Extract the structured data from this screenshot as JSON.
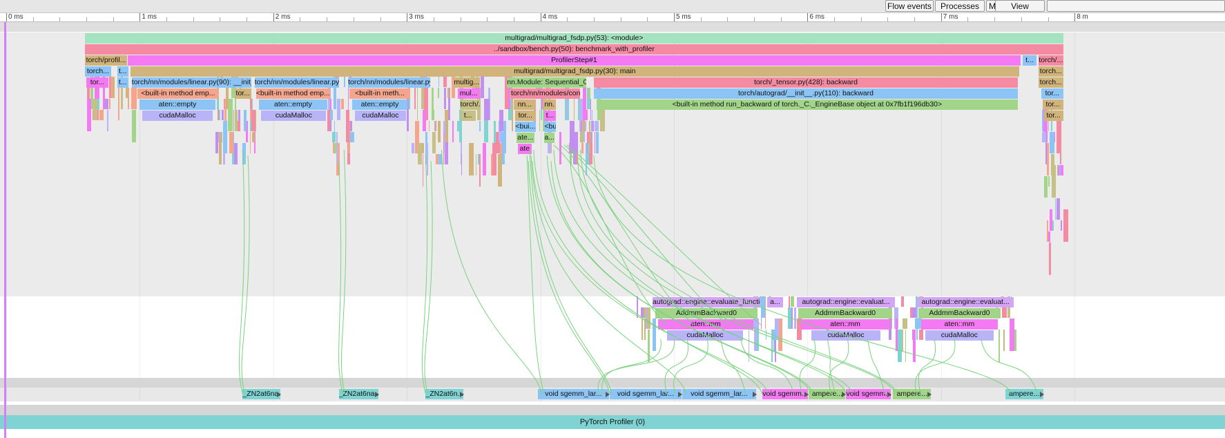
{
  "toolbar": {
    "buttons": [
      {
        "name": "flow-events-button",
        "label": "Flow events"
      },
      {
        "name": "processes-button",
        "label": "Processes"
      },
      {
        "name": "m-button",
        "label": "M"
      },
      {
        "name": "view-options-button",
        "label": "View Options"
      },
      {
        "name": "search-box",
        "label": ""
      }
    ]
  },
  "ruler": {
    "ticks": [
      "0 ms",
      "1 ms",
      "2 ms",
      "3 ms",
      "4 ms",
      "5 ms",
      "6 ms",
      "7 ms",
      "8 m"
    ]
  },
  "colors": {
    "teal": "#7fd3d3",
    "pink": "#f58ba3",
    "magenta": "#f37af3",
    "tan": "#d1b47c",
    "blue": "#8cc4f5",
    "salmon": "#f5a58c",
    "lavender": "#b9b3f7",
    "green": "#a2d58a",
    "mint": "#a3e3c0",
    "olive": "#c6bf86",
    "purple": "#c28ff0",
    "violet": "#d3a6f5",
    "cursor": "#d37ff5",
    "flow": "#78d37c"
  },
  "cpu_events": [
    {
      "label": "multigrad/multigrad_fsdp.py(53): <module>",
      "color": "mint",
      "t0": 0.59,
      "t1": 7.92,
      "row": 0
    },
    {
      "label": "../sandbox/bench.py(50): benchmark_with_profiler",
      "color": "pink",
      "t0": 0.59,
      "t1": 7.92,
      "row": 1
    },
    {
      "label": "torch/profil...",
      "color": "tan",
      "t0": 0.59,
      "t1": 0.91,
      "row": 2
    },
    {
      "label": "ProfilerStep#1",
      "color": "magenta",
      "t0": 0.91,
      "t1": 7.6,
      "row": 2
    },
    {
      "label": "t...",
      "color": "blue",
      "t0": 7.61,
      "t1": 7.72,
      "row": 2
    },
    {
      "label": "torch/...",
      "color": "pink",
      "t0": 7.73,
      "t1": 7.92,
      "row": 2
    },
    {
      "label": "torch...",
      "color": "blue",
      "t0": 0.59,
      "t1": 0.79,
      "row": 3
    },
    {
      "label": "t...",
      "color": "blue",
      "t0": 0.83,
      "t1": 0.92,
      "row": 3
    },
    {
      "label": "multigrad/multigrad_fsdp.py(30): main",
      "color": "tan",
      "t0": 0.93,
      "t1": 7.59,
      "row": 3
    },
    {
      "label": "torch...",
      "color": "tan",
      "t0": 7.73,
      "t1": 7.92,
      "row": 3
    },
    {
      "label": "tor...",
      "color": "magenta",
      "t0": 0.6,
      "t1": 0.77,
      "row": 4
    },
    {
      "label": "t...",
      "color": "blue",
      "t0": 0.83,
      "t1": 0.92,
      "row": 4
    },
    {
      "label": "torch/nn/modules/linear.py(90): __init__",
      "color": "blue",
      "t0": 0.94,
      "t1": 1.84,
      "row": 4
    },
    {
      "label": "torch/nn/modules/linear.py(...",
      "color": "blue",
      "t0": 1.86,
      "t1": 2.5,
      "row": 4
    },
    {
      "label": "torch/nn/modules/linear.py(...",
      "color": "blue",
      "t0": 2.56,
      "t1": 3.18,
      "row": 4
    },
    {
      "label": "multig...",
      "color": "tan",
      "t0": 3.35,
      "t1": 3.55,
      "row": 4
    },
    {
      "label": "nn.Module: Sequential_0",
      "color": "green",
      "t0": 3.75,
      "t1": 4.35,
      "row": 4
    },
    {
      "label": "torch/_tensor.py(428): backward",
      "color": "pink",
      "t0": 4.4,
      "t1": 7.58,
      "row": 4
    },
    {
      "label": "torch...",
      "color": "tan",
      "t0": 7.73,
      "t1": 7.92,
      "row": 4
    },
    {
      "label": "<built-in method emp...",
      "color": "salmon",
      "t0": 0.98,
      "t1": 1.6,
      "row": 5
    },
    {
      "label": "tor...",
      "color": "tan",
      "t0": 1.71,
      "t1": 1.84,
      "row": 5
    },
    {
      "label": "<built-in method emp...",
      "color": "salmon",
      "t0": 1.87,
      "t1": 2.43,
      "row": 5
    },
    {
      "label": "<built-in meth...",
      "color": "salmon",
      "t0": 2.57,
      "t1": 3.03,
      "row": 5
    },
    {
      "label": "mul...",
      "color": "magenta",
      "t0": 3.38,
      "t1": 3.55,
      "row": 5
    },
    {
      "label": "torch/nn/modules/cont...",
      "color": "pink",
      "t0": 3.78,
      "t1": 4.3,
      "row": 5
    },
    {
      "label": "torch/autograd/__init__.py(110): backward",
      "color": "blue",
      "t0": 4.4,
      "t1": 7.58,
      "row": 5
    },
    {
      "label": "tor...",
      "color": "blue",
      "t0": 7.75,
      "t1": 7.92,
      "row": 5
    },
    {
      "label": "aten::empty",
      "color": "blue",
      "t0": 1.0,
      "t1": 1.57,
      "row": 6
    },
    {
      "label": "aten::empty",
      "color": "blue",
      "t0": 1.89,
      "t1": 2.41,
      "row": 6
    },
    {
      "label": "aten::empty",
      "color": "blue",
      "t0": 2.59,
      "t1": 3.01,
      "row": 6
    },
    {
      "label": "torch/...",
      "color": "olive",
      "t0": 3.4,
      "t1": 3.55,
      "row": 6
    },
    {
      "label": "nn...",
      "color": "tan",
      "t0": 3.8,
      "t1": 3.97,
      "row": 6
    },
    {
      "label": "nn.",
      "color": "tan",
      "t0": 4.02,
      "t1": 4.12,
      "row": 6
    },
    {
      "label": "<built-in method run_backward of torch._C._EngineBase object at 0x7fb1f196db30>",
      "color": "green",
      "t0": 4.42,
      "t1": 7.58,
      "row": 6
    },
    {
      "label": "tor...",
      "color": "tan",
      "t0": 7.76,
      "t1": 7.92,
      "row": 6
    },
    {
      "label": "cudaMalloc",
      "color": "lavender",
      "t0": 1.02,
      "t1": 1.55,
      "row": 7
    },
    {
      "label": "cudaMalloc",
      "color": "lavender",
      "t0": 1.91,
      "t1": 2.4,
      "row": 7
    },
    {
      "label": "cudaMalloc",
      "color": "lavender",
      "t0": 2.61,
      "t1": 3.0,
      "row": 7
    },
    {
      "label": "t...",
      "color": "olive",
      "t0": 3.4,
      "t1": 3.52,
      "row": 7
    },
    {
      "label": "tor...",
      "color": "tan",
      "t0": 3.81,
      "t1": 3.97,
      "row": 7
    },
    {
      "label": "t...",
      "color": "magenta",
      "t0": 4.03,
      "t1": 4.12,
      "row": 7
    },
    {
      "label": "tor...",
      "color": "tan",
      "t0": 7.77,
      "t1": 7.92,
      "row": 7
    },
    {
      "label": "<bui...",
      "color": "blue",
      "t0": 3.81,
      "t1": 3.97,
      "row": 8
    },
    {
      "label": "<bu",
      "color": "blue",
      "t0": 4.03,
      "t1": 4.12,
      "row": 8
    },
    {
      "label": "ate...",
      "color": "green",
      "t0": 3.82,
      "t1": 3.96,
      "row": 9
    },
    {
      "label": "a...",
      "color": "green",
      "t0": 4.03,
      "t1": 4.11,
      "row": 9
    },
    {
      "label": "ate",
      "color": "magenta",
      "t0": 3.83,
      "t1": 3.94,
      "row": 10
    }
  ],
  "bw_events": [
    {
      "label": "autograd::engine::evaluate_function...",
      "color": "violet",
      "t0": 4.84,
      "t1": 5.65,
      "row": 0
    },
    {
      "label": "a...",
      "color": "violet",
      "t0": 5.7,
      "t1": 5.82,
      "row": 0
    },
    {
      "label": "autograd::engine::evaluat...",
      "color": "violet",
      "t0": 5.92,
      "t1": 6.66,
      "row": 0
    },
    {
      "label": "autograd::engine::evaluat...",
      "color": "violet",
      "t0": 6.82,
      "t1": 7.55,
      "row": 0
    },
    {
      "label": "AddmmBackward0",
      "color": "green",
      "t0": 4.86,
      "t1": 5.63,
      "row": 1
    },
    {
      "label": "AddmmBackward0",
      "color": "green",
      "t0": 5.93,
      "t1": 6.64,
      "row": 1
    },
    {
      "label": "AddmmBackward0",
      "color": "green",
      "t0": 6.83,
      "t1": 7.45,
      "row": 1
    },
    {
      "label": "aten::mm",
      "color": "magenta",
      "t0": 4.88,
      "t1": 5.6,
      "row": 2
    },
    {
      "label": "aten::mm",
      "color": "magenta",
      "t0": 5.95,
      "t1": 6.62,
      "row": 2
    },
    {
      "label": "aten::mm",
      "color": "magenta",
      "t0": 6.85,
      "t1": 7.43,
      "row": 2
    },
    {
      "label": "cudaMalloc",
      "color": "lavender",
      "t0": 4.95,
      "t1": 5.52,
      "row": 3
    },
    {
      "label": "cudaMalloc",
      "color": "lavender",
      "t0": 6.03,
      "t1": 6.55,
      "row": 3
    },
    {
      "label": "cudaMalloc",
      "color": "lavender",
      "t0": 6.88,
      "t1": 7.4,
      "row": 3
    }
  ],
  "gpu_events": [
    {
      "label": "_ZN2at6na...",
      "color": "teal",
      "t0": 1.77,
      "t1": 2.06
    },
    {
      "label": "_ZN2at6na...",
      "color": "teal",
      "t0": 2.49,
      "t1": 2.79
    },
    {
      "label": "_ZN2at6n...",
      "color": "teal",
      "t0": 3.14,
      "t1": 3.43
    },
    {
      "label": "void sgemm_lar...",
      "color": "blue",
      "t0": 3.98,
      "t1": 4.52
    },
    {
      "label": "void sgemm_lar...",
      "color": "blue",
      "t0": 4.52,
      "t1": 5.06
    },
    {
      "label": "void sgemm_lar...",
      "color": "blue",
      "t0": 5.06,
      "t1": 5.62
    },
    {
      "label": "void sgemm...",
      "color": "magenta",
      "t0": 5.66,
      "t1": 6.01
    },
    {
      "label": "ampere...",
      "color": "green",
      "t0": 6.01,
      "t1": 6.29
    },
    {
      "label": "void sgemm...",
      "color": "magenta",
      "t0": 6.29,
      "t1": 6.63
    },
    {
      "label": "ampere...",
      "color": "green",
      "t0": 6.64,
      "t1": 6.93
    },
    {
      "label": "ampere...",
      "color": "teal",
      "t0": 7.48,
      "t1": 7.77
    }
  ],
  "process_label": "PyTorch Profiler (0)"
}
